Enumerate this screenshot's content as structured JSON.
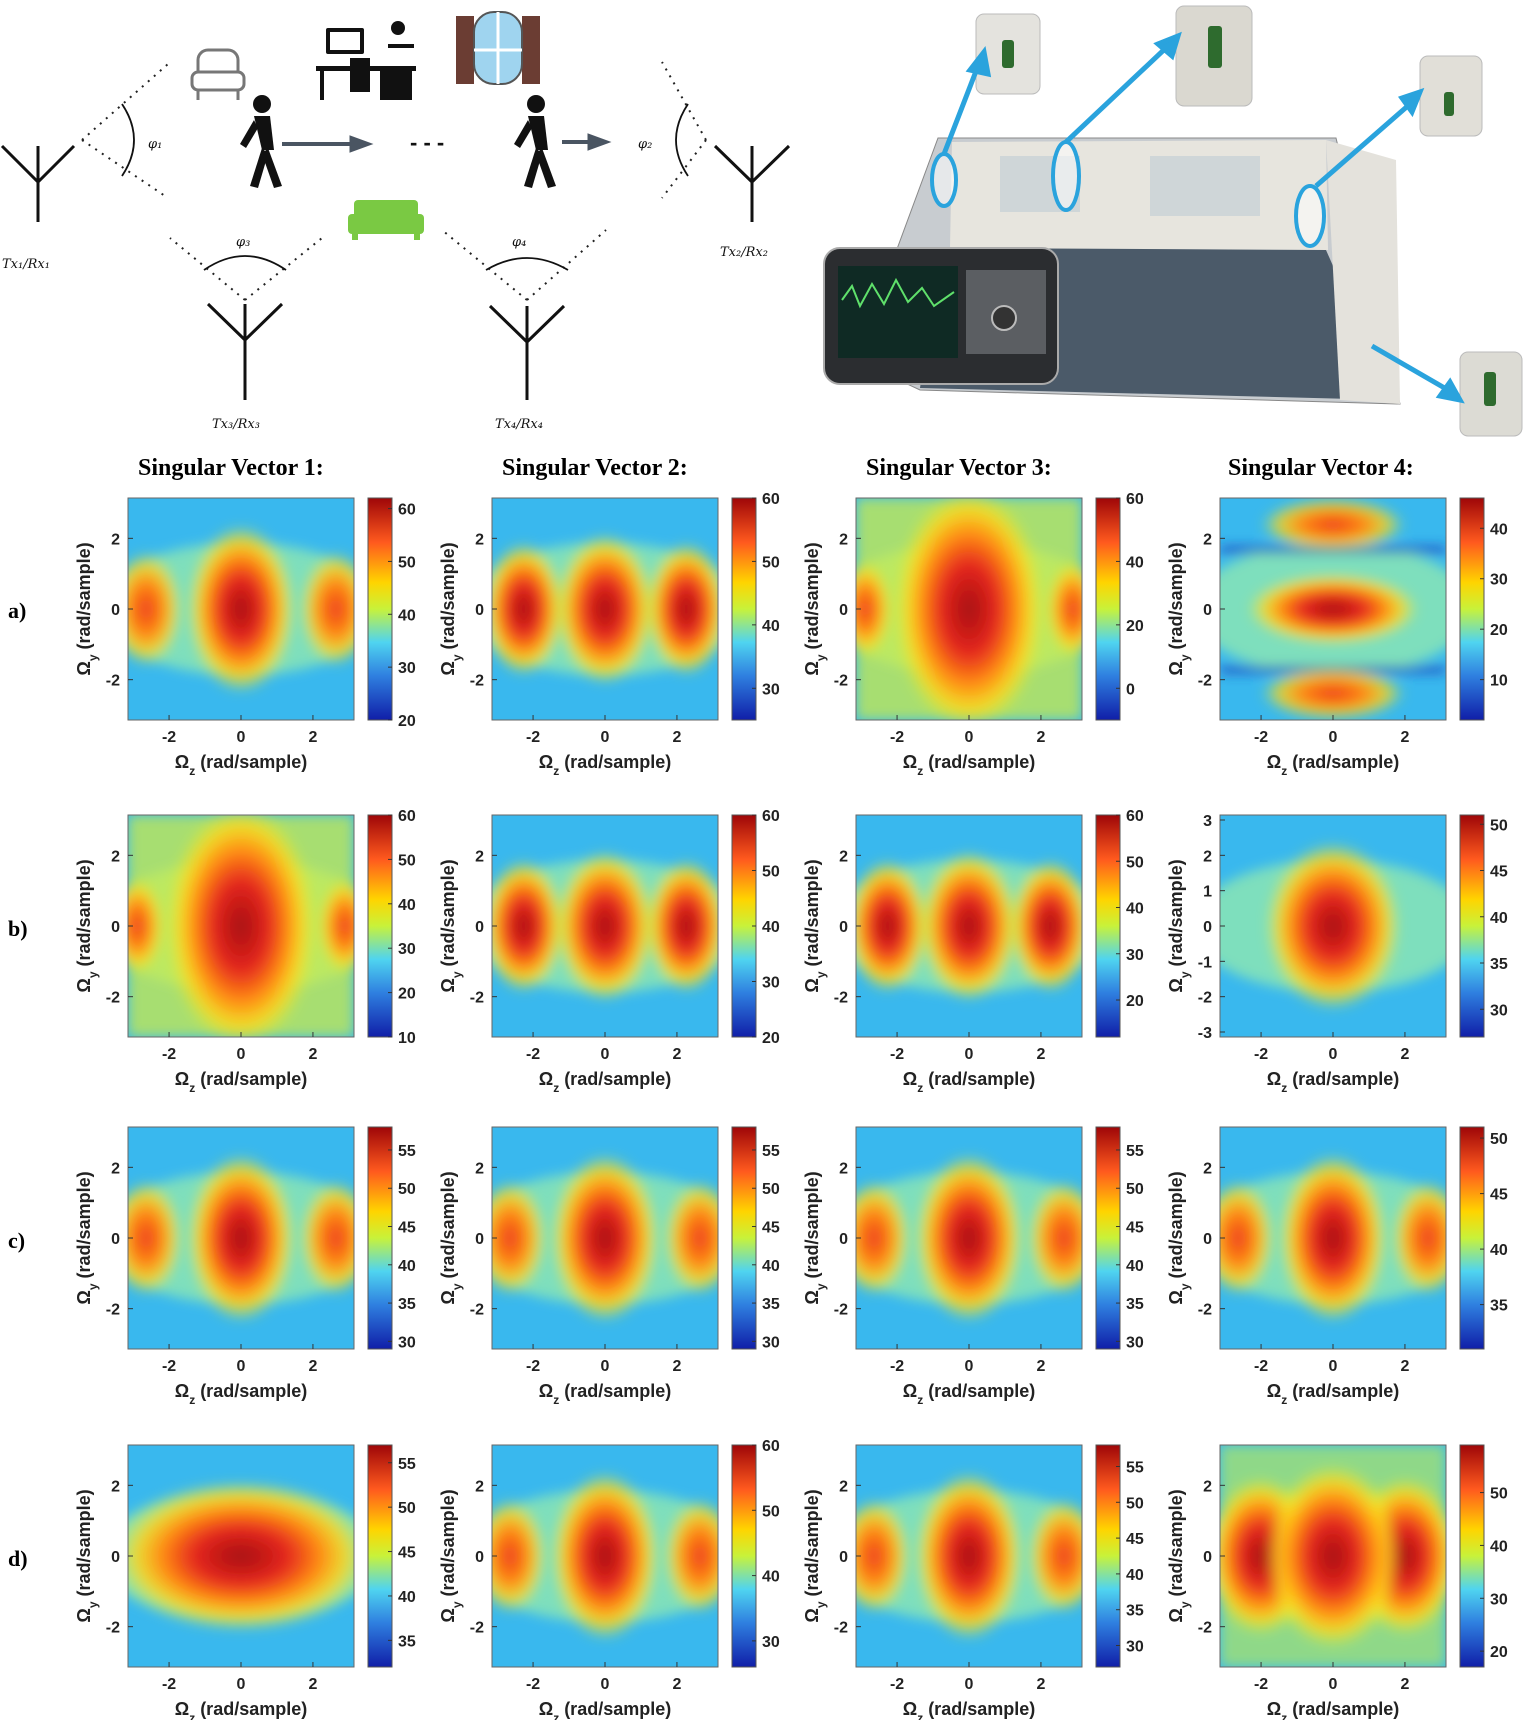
{
  "diagram": {
    "antennas": [
      {
        "label": "Tx₁/Rx₁"
      },
      {
        "label": "Tx₂/Rx₂"
      },
      {
        "label": "Tx₃/Rx₃"
      },
      {
        "label": "Tx₄/Rx₄"
      }
    ],
    "angles": [
      "φ₁",
      "φ₂",
      "φ₃",
      "φ₄"
    ],
    "ellipsis": "- - -"
  },
  "photo": {
    "description_icons": [
      "armchair-icon",
      "desk-icon",
      "window-icon",
      "sofa-icon",
      "walking-person-icon",
      "antenna-icon"
    ]
  },
  "figure": {
    "column_titles": [
      "Singular Vector 1:",
      "Singular Vector 2:",
      "Singular Vector 3:",
      "Singular Vector 4:"
    ],
    "row_labels": [
      "a)",
      "b)",
      "c)",
      "d)"
    ],
    "xlabel_sym": "Ω",
    "xlabel_sub": "z",
    "xlabel_unit": " (rad/sample)",
    "ylabel_sym": "Ω",
    "ylabel_sub": "y",
    "ylabel_unit": " (rad/sample)"
  },
  "chart_data": [
    {
      "type": "heatmap",
      "row": "a)",
      "col": 1,
      "pattern": "three-lobe",
      "x_ticks": [
        "-2",
        "0",
        "2"
      ],
      "y_ticks": [
        "2",
        "0",
        "-2"
      ],
      "colorbar_ticks": [
        "60",
        "50",
        "40",
        "30",
        "20"
      ],
      "clim": [
        20,
        62
      ]
    },
    {
      "type": "heatmap",
      "row": "a)",
      "col": 2,
      "pattern": "three-lobe-equal",
      "x_ticks": [
        "-2",
        "0",
        "2"
      ],
      "y_ticks": [
        "2",
        "0",
        "-2"
      ],
      "colorbar_ticks": [
        "60",
        "50",
        "40",
        "30"
      ],
      "clim": [
        25,
        60
      ]
    },
    {
      "type": "heatmap",
      "row": "a)",
      "col": 3,
      "pattern": "broad-center",
      "x_ticks": [
        "-2",
        "0",
        "2"
      ],
      "y_ticks": [
        "2",
        "0",
        "-2"
      ],
      "colorbar_ticks": [
        "60",
        "40",
        "20",
        "0"
      ],
      "clim": [
        -10,
        60
      ]
    },
    {
      "type": "heatmap",
      "row": "a)",
      "col": 4,
      "pattern": "horizontal-bands",
      "x_ticks": [
        "-2",
        "0",
        "2"
      ],
      "y_ticks": [
        "2",
        "0",
        "-2"
      ],
      "colorbar_ticks": [
        "40",
        "30",
        "20",
        "10"
      ],
      "clim": [
        2,
        46
      ]
    },
    {
      "type": "heatmap",
      "row": "b)",
      "col": 1,
      "pattern": "broad-center",
      "x_ticks": [
        "-2",
        "0",
        "2"
      ],
      "y_ticks": [
        "2",
        "0",
        "-2"
      ],
      "colorbar_ticks": [
        "60",
        "50",
        "40",
        "30",
        "20",
        "10"
      ],
      "clim": [
        10,
        60
      ]
    },
    {
      "type": "heatmap",
      "row": "b)",
      "col": 2,
      "pattern": "three-lobe-equal",
      "x_ticks": [
        "-2",
        "0",
        "2"
      ],
      "y_ticks": [
        "2",
        "0",
        "-2"
      ],
      "colorbar_ticks": [
        "60",
        "50",
        "40",
        "30",
        "20"
      ],
      "clim": [
        20,
        60
      ]
    },
    {
      "type": "heatmap",
      "row": "b)",
      "col": 3,
      "pattern": "three-lobe-equal",
      "x_ticks": [
        "-2",
        "0",
        "2"
      ],
      "y_ticks": [
        "2",
        "0",
        "-2"
      ],
      "colorbar_ticks": [
        "60",
        "50",
        "40",
        "30",
        "20"
      ],
      "clim": [
        12,
        60
      ]
    },
    {
      "type": "heatmap",
      "row": "b)",
      "col": 4,
      "pattern": "center-blob",
      "x_ticks": [
        "-2",
        "0",
        "2"
      ],
      "y_ticks": [
        "3",
        "2",
        "1",
        "0",
        "-1",
        "-2",
        "-3"
      ],
      "colorbar_ticks": [
        "50",
        "45",
        "40",
        "35",
        "30"
      ],
      "clim": [
        27,
        51
      ]
    },
    {
      "type": "heatmap",
      "row": "c)",
      "col": 1,
      "pattern": "three-lobe",
      "x_ticks": [
        "-2",
        "0",
        "2"
      ],
      "y_ticks": [
        "2",
        "0",
        "-2"
      ],
      "colorbar_ticks": [
        "55",
        "50",
        "45",
        "40",
        "35",
        "30"
      ],
      "clim": [
        29,
        58
      ]
    },
    {
      "type": "heatmap",
      "row": "c)",
      "col": 2,
      "pattern": "three-lobe",
      "x_ticks": [
        "-2",
        "0",
        "2"
      ],
      "y_ticks": [
        "2",
        "0",
        "-2"
      ],
      "colorbar_ticks": [
        "55",
        "50",
        "45",
        "40",
        "35",
        "30"
      ],
      "clim": [
        29,
        58
      ]
    },
    {
      "type": "heatmap",
      "row": "c)",
      "col": 3,
      "pattern": "three-lobe",
      "x_ticks": [
        "-2",
        "0",
        "2"
      ],
      "y_ticks": [
        "2",
        "0",
        "-2"
      ],
      "colorbar_ticks": [
        "55",
        "50",
        "45",
        "40",
        "35",
        "30"
      ],
      "clim": [
        29,
        58
      ]
    },
    {
      "type": "heatmap",
      "row": "c)",
      "col": 4,
      "pattern": "three-lobe",
      "x_ticks": [
        "-2",
        "0",
        "2"
      ],
      "y_ticks": [
        "2",
        "0",
        "-2"
      ],
      "colorbar_ticks": [
        "50",
        "45",
        "40",
        "35"
      ],
      "clim": [
        31,
        51
      ]
    },
    {
      "type": "heatmap",
      "row": "d)",
      "col": 1,
      "pattern": "horizontal-ellipse",
      "x_ticks": [
        "-2",
        "0",
        "2"
      ],
      "y_ticks": [
        "2",
        "0",
        "-2"
      ],
      "colorbar_ticks": [
        "55",
        "50",
        "45",
        "40",
        "35"
      ],
      "clim": [
        32,
        57
      ]
    },
    {
      "type": "heatmap",
      "row": "d)",
      "col": 2,
      "pattern": "three-lobe",
      "x_ticks": [
        "-2",
        "0",
        "2"
      ],
      "y_ticks": [
        "2",
        "0",
        "-2"
      ],
      "colorbar_ticks": [
        "60",
        "50",
        "40",
        "30"
      ],
      "clim": [
        26,
        60
      ]
    },
    {
      "type": "heatmap",
      "row": "d)",
      "col": 3,
      "pattern": "three-lobe",
      "x_ticks": [
        "-2",
        "0",
        "2"
      ],
      "y_ticks": [
        "2",
        "0",
        "-2"
      ],
      "colorbar_ticks": [
        "55",
        "50",
        "45",
        "40",
        "35",
        "30"
      ],
      "clim": [
        27,
        58
      ]
    },
    {
      "type": "heatmap",
      "row": "d)",
      "col": 4,
      "pattern": "wide-three-lobe",
      "x_ticks": [
        "-2",
        "0",
        "2"
      ],
      "y_ticks": [
        "2",
        "0",
        "-2"
      ],
      "colorbar_ticks": [
        "50",
        "40",
        "30",
        "20"
      ],
      "clim": [
        17,
        59
      ]
    }
  ]
}
